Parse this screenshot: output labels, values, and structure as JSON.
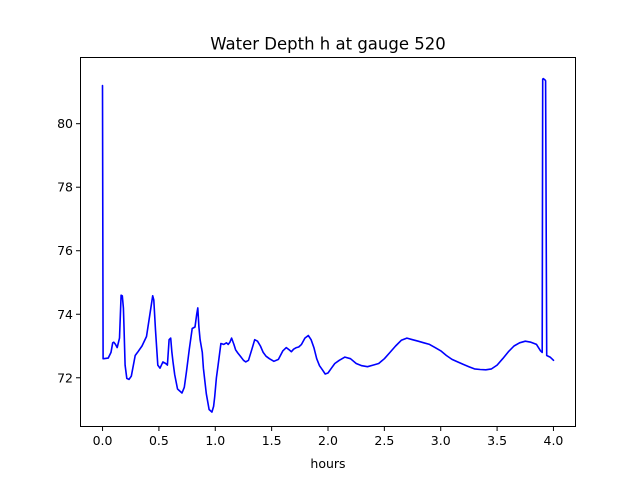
{
  "chart_data": {
    "type": "line",
    "title": "Water Depth h at gauge 520",
    "xlabel": "hours",
    "ylabel": "",
    "xlim": [
      -0.2,
      4.2
    ],
    "ylim": [
      70.45,
      82.1
    ],
    "grid": false,
    "legend": "none",
    "xticks": [
      {
        "value": 0.0,
        "label": "0.0"
      },
      {
        "value": 0.5,
        "label": "0.5"
      },
      {
        "value": 1.0,
        "label": "1.0"
      },
      {
        "value": 1.5,
        "label": "1.5"
      },
      {
        "value": 2.0,
        "label": "2.0"
      },
      {
        "value": 2.5,
        "label": "2.5"
      },
      {
        "value": 3.0,
        "label": "3.0"
      },
      {
        "value": 3.5,
        "label": "3.5"
      },
      {
        "value": 4.0,
        "label": "4.0"
      }
    ],
    "yticks": [
      {
        "value": 72,
        "label": "72"
      },
      {
        "value": 74,
        "label": "74"
      },
      {
        "value": 76,
        "label": "76"
      },
      {
        "value": 78,
        "label": "78"
      },
      {
        "value": 80,
        "label": "80"
      }
    ],
    "series": [
      {
        "color": "#0000ff",
        "x": [
          0.0,
          0.005,
          0.01,
          0.05,
          0.075,
          0.09,
          0.1,
          0.115,
          0.13,
          0.15,
          0.165,
          0.175,
          0.185,
          0.19,
          0.2,
          0.215,
          0.235,
          0.255,
          0.29,
          0.31,
          0.35,
          0.39,
          0.42,
          0.445,
          0.455,
          0.47,
          0.49,
          0.51,
          0.535,
          0.56,
          0.575,
          0.59,
          0.605,
          0.615,
          0.625,
          0.64,
          0.665,
          0.68,
          0.705,
          0.725,
          0.745,
          0.77,
          0.795,
          0.82,
          0.835,
          0.845,
          0.855,
          0.865,
          0.875,
          0.885,
          0.895,
          0.92,
          0.945,
          0.97,
          0.985,
          0.995,
          1.01,
          1.025,
          1.05,
          1.075,
          1.1,
          1.115,
          1.13,
          1.145,
          1.165,
          1.18,
          1.2,
          1.225,
          1.25,
          1.27,
          1.295,
          1.325,
          1.35,
          1.375,
          1.4,
          1.425,
          1.45,
          1.48,
          1.52,
          1.56,
          1.6,
          1.63,
          1.655,
          1.675,
          1.695,
          1.72,
          1.74,
          1.765,
          1.795,
          1.825,
          1.85,
          1.875,
          1.9,
          1.925,
          1.95,
          1.975,
          2.0,
          2.03,
          2.06,
          2.1,
          2.15,
          2.2,
          2.25,
          2.3,
          2.35,
          2.4,
          2.45,
          2.5,
          2.55,
          2.6,
          2.65,
          2.7,
          2.75,
          2.8,
          2.85,
          2.9,
          2.95,
          3.0,
          3.05,
          3.1,
          3.15,
          3.2,
          3.25,
          3.3,
          3.35,
          3.4,
          3.45,
          3.5,
          3.55,
          3.6,
          3.65,
          3.7,
          3.75,
          3.8,
          3.85,
          3.885,
          3.9,
          3.905,
          3.91,
          3.925,
          3.93,
          3.94,
          3.97,
          4.0
        ],
        "y": [
          81.2,
          72.6,
          72.6,
          72.62,
          72.8,
          73.1,
          73.12,
          73.05,
          72.95,
          73.25,
          74.6,
          74.58,
          74.2,
          73.6,
          72.4,
          71.98,
          71.95,
          72.05,
          72.7,
          72.8,
          73.0,
          73.3,
          74.0,
          74.58,
          74.45,
          73.5,
          72.4,
          72.3,
          72.5,
          72.45,
          72.4,
          73.2,
          73.25,
          72.8,
          72.5,
          72.1,
          71.65,
          71.6,
          71.52,
          71.7,
          72.2,
          72.9,
          73.55,
          73.6,
          74.0,
          74.2,
          73.6,
          73.2,
          73.0,
          72.8,
          72.3,
          71.5,
          71.0,
          70.92,
          71.1,
          71.4,
          72.0,
          72.4,
          73.08,
          73.05,
          73.1,
          73.05,
          73.12,
          73.25,
          73.05,
          72.88,
          72.78,
          72.67,
          72.55,
          72.5,
          72.55,
          72.9,
          73.2,
          73.15,
          73.0,
          72.8,
          72.68,
          72.6,
          72.52,
          72.58,
          72.85,
          72.95,
          72.88,
          72.82,
          72.9,
          72.95,
          72.97,
          73.05,
          73.25,
          73.33,
          73.2,
          72.95,
          72.6,
          72.38,
          72.25,
          72.12,
          72.15,
          72.3,
          72.45,
          72.55,
          72.65,
          72.6,
          72.45,
          72.38,
          72.35,
          72.4,
          72.45,
          72.6,
          72.8,
          73.0,
          73.18,
          73.25,
          73.2,
          73.15,
          73.1,
          73.05,
          72.95,
          72.85,
          72.7,
          72.58,
          72.5,
          72.42,
          72.35,
          72.28,
          72.26,
          72.25,
          72.28,
          72.4,
          72.6,
          72.82,
          73.0,
          73.1,
          73.15,
          73.12,
          73.05,
          72.85,
          72.8,
          81.4,
          81.42,
          81.38,
          81.35,
          72.7,
          72.65,
          72.55
        ]
      }
    ]
  }
}
